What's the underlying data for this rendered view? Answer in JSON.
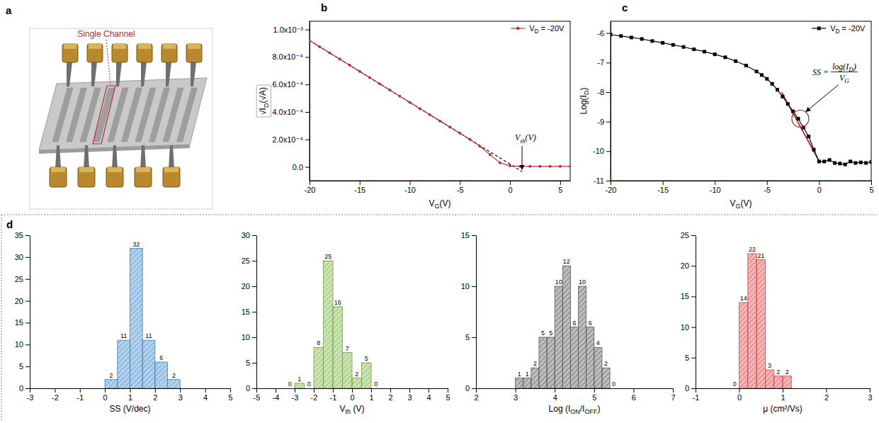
{
  "diagram": {
    "letter": "a",
    "label": "Single Channel"
  },
  "panel_d": {
    "letter": "d"
  },
  "chart_data": [
    {
      "type": "line",
      "letter": "b",
      "xlabel": [
        "V",
        "G",
        "(V)"
      ],
      "ylabel": [
        "√I",
        "D",
        "(√A)"
      ],
      "x": [
        -20,
        -19,
        -18,
        -17,
        -16,
        -15,
        -14,
        -13,
        -12,
        -11,
        -10,
        -9,
        -8,
        -7,
        -6,
        -5,
        -4,
        -3,
        -2,
        -1,
        0,
        1,
        2,
        3,
        4,
        5,
        6
      ],
      "series": [
        {
          "name": [
            "V",
            "D",
            " = -20V"
          ],
          "color": "#b8312f",
          "marker": "circle",
          "line_style": "solid",
          "values": [
            0.00092,
            0.000875,
            0.00083,
            0.000785,
            0.00074,
            0.000695,
            0.00065,
            0.000605,
            0.00056,
            0.000515,
            0.00047,
            0.000425,
            0.00038,
            0.000335,
            0.00029,
            0.000245,
            0.0002,
            0.00015,
            9e-05,
            3e-05,
            8e-06,
            5e-06,
            4e-06,
            4e-06,
            4e-06,
            4e-06,
            4e-06
          ]
        }
      ],
      "fit_line": {
        "x": [
          -20,
          1.2
        ],
        "values": [
          0.00092,
          -3.4e-05
        ],
        "color": "#000000",
        "line_style": "dashed"
      },
      "annotation": [
        "V",
        "th",
        "(V)"
      ],
      "xlim": [
        -20,
        6
      ],
      "xticks": [
        -20,
        -15,
        -10,
        -5,
        0,
        5
      ],
      "ylim": [
        -0.0001,
        0.00106
      ],
      "yticks": [
        {
          "value": 0,
          "label": "0.0"
        },
        {
          "value": 0.0002,
          "label": "2.0x10⁻⁴"
        },
        {
          "value": 0.0004,
          "label": "4.0x10⁻⁴"
        },
        {
          "value": 0.0006,
          "label": "6.0x10⁻⁴"
        },
        {
          "value": 0.0008,
          "label": "8.0x10⁻⁴"
        },
        {
          "value": 0.001,
          "label": "1.0x10⁻³"
        }
      ],
      "legend": "top-right"
    },
    {
      "type": "line",
      "letter": "c",
      "xlabel": [
        "V",
        "G",
        "(V)"
      ],
      "ylabel": [
        "Log(I",
        "D",
        ")"
      ],
      "x": [
        -20,
        -19,
        -18,
        -17,
        -16,
        -15,
        -14,
        -13,
        -12,
        -11,
        -10,
        -9,
        -8,
        -7,
        -6,
        -5.5,
        -5,
        -4.5,
        -4,
        -3.5,
        -3,
        -2.5,
        -2,
        -1.5,
        -1,
        -0.5,
        0,
        0.5,
        1,
        1.5,
        2,
        2.5,
        3,
        3.5,
        4,
        4.5,
        5
      ],
      "series": [
        {
          "name": [
            "V",
            "D",
            " = -20V"
          ],
          "color": "#000000",
          "marker": "square",
          "line_style": "solid",
          "values": [
            -6.05,
            -6.1,
            -6.15,
            -6.2,
            -6.27,
            -6.33,
            -6.4,
            -6.47,
            -6.55,
            -6.63,
            -6.72,
            -6.82,
            -6.95,
            -7.1,
            -7.3,
            -7.42,
            -7.55,
            -7.72,
            -7.92,
            -8.15,
            -8.4,
            -8.65,
            -8.9,
            -9.2,
            -9.5,
            -9.95,
            -10.35,
            -10.35,
            -10.3,
            -10.4,
            -10.42,
            -10.45,
            -10.35,
            -10.4,
            -10.38,
            -10.4,
            -10.37
          ]
        }
      ],
      "fit_line": {
        "x": [
          -3.6,
          0.1
        ],
        "values": [
          -8.0,
          -10.4
        ],
        "color": "#b22222",
        "line_style": "solid"
      },
      "highlight": {
        "x": -1.8,
        "y": -8.9,
        "color": "#a52a2a"
      },
      "formula": {
        "lhs": "SS =",
        "numerator": [
          "log(I",
          "D",
          ")"
        ],
        "denominator": [
          "V",
          "G"
        ]
      },
      "xlim": [
        -20,
        5
      ],
      "xticks": [
        -20,
        -15,
        -10,
        -5,
        0,
        5
      ],
      "ylim": [
        -11,
        -5.6
      ],
      "yticks": [
        -11,
        -10,
        -9,
        -8,
        -7,
        -6
      ],
      "legend": "top-right"
    },
    {
      "type": "histogram",
      "xlabel": [
        "SS (V/dec)"
      ],
      "color": "#5b9bd5",
      "data_labels": true,
      "bins": [
        0,
        0.5,
        1,
        1.5,
        2,
        2.5,
        3
      ],
      "counts": [
        2,
        11,
        32,
        11,
        6,
        2
      ],
      "xlim": [
        -3,
        5
      ],
      "xticks": [
        -3,
        -2,
        -1,
        0,
        1,
        2,
        3,
        4,
        5
      ],
      "ylim": [
        0,
        35
      ],
      "yticks": [
        0,
        5,
        10,
        15,
        20,
        25,
        30,
        35
      ]
    },
    {
      "type": "histogram",
      "xlabel": [
        "V",
        "th",
        " (V)"
      ],
      "color": "#8fc15a",
      "data_labels": true,
      "bins": [
        -3.5,
        -3,
        -2.5,
        -2,
        -1.5,
        -1,
        -0.5,
        0,
        0.5,
        1,
        1.5
      ],
      "counts": [
        0,
        1,
        0,
        8,
        25,
        16,
        7,
        2,
        5,
        0
      ],
      "xlim": [
        -5,
        5
      ],
      "xticks": [
        -5,
        -4,
        -3,
        -2,
        -1,
        0,
        1,
        2,
        3,
        4,
        5
      ],
      "ylim": [
        0,
        30
      ],
      "yticks": [
        0,
        5,
        10,
        15,
        20,
        25,
        30
      ]
    },
    {
      "type": "histogram",
      "xlabel": [
        "Log (I",
        "ON",
        "/I",
        "OFF",
        ")"
      ],
      "color": "#6d6d6d",
      "data_labels": true,
      "bins": [
        3,
        3.2,
        3.4,
        3.6,
        3.8,
        4,
        4.2,
        4.4,
        4.6,
        4.8,
        5,
        5.2,
        5.4,
        5.6
      ],
      "counts": [
        1,
        1,
        2,
        5,
        5,
        10,
        12,
        6,
        10,
        6,
        4,
        2,
        0
      ],
      "xlim": [
        2,
        7
      ],
      "xticks": [
        2,
        3,
        4,
        5,
        6,
        7
      ],
      "ylim": [
        0,
        15
      ],
      "yticks": [
        0,
        5,
        10,
        15
      ]
    },
    {
      "type": "histogram",
      "xlabel": [
        "μ (cm²/Vs)"
      ],
      "color": "#e8605f",
      "data_labels": true,
      "bins": [
        -0.2,
        0,
        0.2,
        0.4,
        0.6,
        0.8,
        1,
        1.2
      ],
      "counts": [
        0,
        14,
        22,
        21,
        3,
        2,
        2
      ],
      "xlim": [
        -1,
        3
      ],
      "xticks": [
        -1,
        0,
        1,
        2,
        3
      ],
      "ylim": [
        0,
        25
      ],
      "yticks": [
        0,
        5,
        10,
        15,
        20,
        25
      ]
    }
  ]
}
